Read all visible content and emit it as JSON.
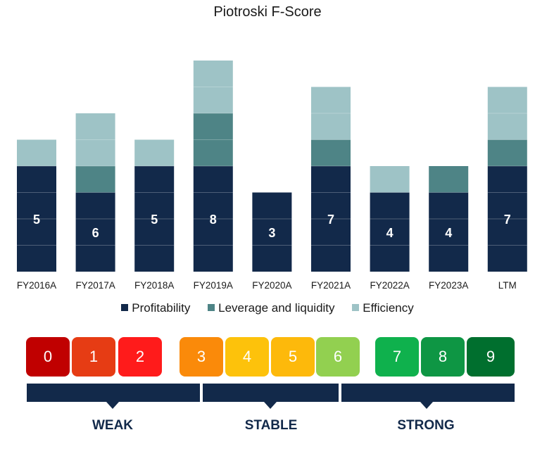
{
  "chart_data": {
    "type": "bar",
    "title": "Piotroski F-Score",
    "stacked": true,
    "categories": [
      "FY2016A",
      "FY2017A",
      "FY2018A",
      "FY2019A",
      "FY2020A",
      "FY2021A",
      "FY2022A",
      "FY2023A",
      "LTM"
    ],
    "series": [
      {
        "name": "Profitability",
        "color": "#12294a",
        "values": [
          4,
          3,
          4,
          4,
          3,
          4,
          3,
          3,
          4
        ]
      },
      {
        "name": "Leverage and liquidity",
        "color": "#4e8486",
        "values": [
          0,
          1,
          0,
          2,
          0,
          1,
          0,
          1,
          1
        ]
      },
      {
        "name": "Efficiency",
        "color": "#9ec3c6",
        "values": [
          1,
          2,
          1,
          2,
          0,
          2,
          1,
          0,
          2
        ]
      }
    ],
    "total_labels": [
      "5",
      "6",
      "5",
      "8",
      "3",
      "7",
      "4",
      "4",
      "7"
    ],
    "ylim": [
      0,
      9
    ],
    "grid": false,
    "legend_position": "bottom"
  },
  "scale": {
    "scores": [
      {
        "label": "0",
        "color": "#c00000"
      },
      {
        "label": "1",
        "color": "#e63c14"
      },
      {
        "label": "2",
        "color": "#ff1b1b"
      },
      {
        "label": "3",
        "color": "#fa8a0a"
      },
      {
        "label": "4",
        "color": "#fdc20b"
      },
      {
        "label": "5",
        "color": "#fdb90b"
      },
      {
        "label": "6",
        "color": "#92d050"
      },
      {
        "label": "7",
        "color": "#0fb14d"
      },
      {
        "label": "8",
        "color": "#0e9644"
      },
      {
        "label": "9",
        "color": "#006f2e"
      }
    ],
    "bands": [
      {
        "label": "WEAK"
      },
      {
        "label": "STABLE"
      },
      {
        "label": "STRONG"
      }
    ]
  }
}
